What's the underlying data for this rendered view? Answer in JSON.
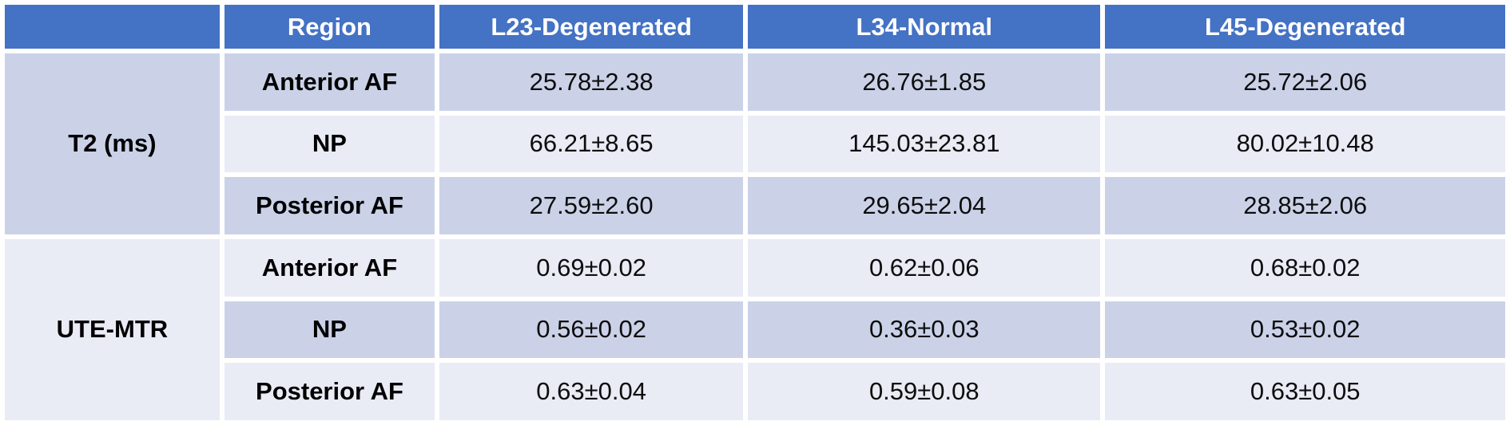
{
  "colors": {
    "header_blue": "#4472C4",
    "band_dark": "#CBD2E8",
    "band_light": "#E9EBF5",
    "header_text": "#ffffff",
    "body_text": "#000000",
    "gridline": "#ffffff"
  },
  "table": {
    "header": {
      "corner": "",
      "region": "Region",
      "columns": [
        "L23-Degenerated",
        "L34-Normal",
        "L45-Degenerated"
      ]
    },
    "groups": [
      {
        "metric": "T2 (ms)",
        "rows": [
          {
            "region": "Anterior AF",
            "values": [
              "25.78±2.38",
              "26.76±1.85",
              "25.72±2.06"
            ]
          },
          {
            "region": "NP",
            "values": [
              "66.21±8.65",
              "145.03±23.81",
              "80.02±10.48"
            ]
          },
          {
            "region": "Posterior AF",
            "values": [
              "27.59±2.60",
              "29.65±2.04",
              "28.85±2.06"
            ]
          }
        ]
      },
      {
        "metric": "UTE-MTR",
        "rows": [
          {
            "region": "Anterior AF",
            "values": [
              "0.69±0.02",
              "0.62±0.06",
              "0.68±0.02"
            ]
          },
          {
            "region": "NP",
            "values": [
              "0.56±0.02",
              "0.36±0.03",
              "0.53±0.02"
            ]
          },
          {
            "region": "Posterior AF",
            "values": [
              "0.63±0.04",
              "0.59±0.08",
              "0.63±0.05"
            ]
          }
        ]
      }
    ]
  },
  "chart_data": {
    "type": "table",
    "title": "",
    "row_group_labels": [
      "T2 (ms)",
      "UTE-MTR"
    ],
    "column_headers": [
      "Region",
      "L23-Degenerated",
      "L34-Normal",
      "L45-Degenerated"
    ],
    "rows": [
      [
        "T2 (ms)",
        "Anterior AF",
        "25.78±2.38",
        "26.76±1.85",
        "25.72±2.06"
      ],
      [
        "T2 (ms)",
        "NP",
        "66.21±8.65",
        "145.03±23.81",
        "80.02±10.48"
      ],
      [
        "T2 (ms)",
        "Posterior AF",
        "27.59±2.60",
        "29.65±2.04",
        "28.85±2.06"
      ],
      [
        "UTE-MTR",
        "Anterior AF",
        "0.69±0.02",
        "0.62±0.06",
        "0.68±0.02"
      ],
      [
        "UTE-MTR",
        "NP",
        "0.56±0.02",
        "0.36±0.03",
        "0.53±0.02"
      ],
      [
        "UTE-MTR",
        "Posterior AF",
        "0.63±0.04",
        "0.59±0.08",
        "0.63±0.05"
      ]
    ]
  }
}
